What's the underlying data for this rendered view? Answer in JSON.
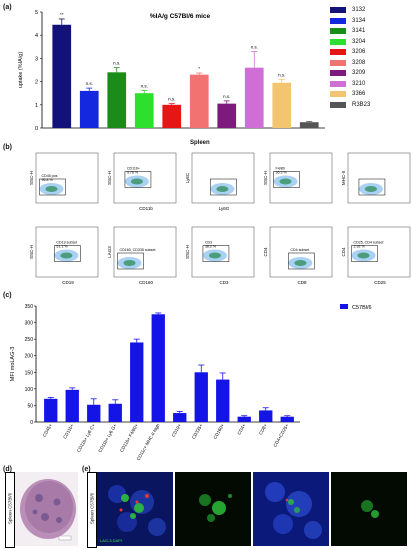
{
  "panel_labels": {
    "a": "(a)",
    "b": "(b)",
    "c": "(c)",
    "d": "(d)",
    "e": "(e)"
  },
  "chart_a": {
    "title": "%IA/g C57Bl/6 mice",
    "ylabel": "uptake (%IA/g)",
    "ylim": [
      0,
      5
    ],
    "yticks": [
      "0",
      "1",
      "2",
      "3",
      "4",
      "5"
    ],
    "bars": [
      {
        "name": "3132",
        "value": 4.45,
        "err": 0.25,
        "color": "#13127a",
        "sig": "**"
      },
      {
        "name": "3134",
        "value": 1.6,
        "err": 0.12,
        "color": "#1428e0",
        "sig": "n.s."
      },
      {
        "name": "3141",
        "value": 2.4,
        "err": 0.2,
        "color": "#1a8c1a",
        "sig": "n.s."
      },
      {
        "name": "3204",
        "value": 1.5,
        "err": 0.12,
        "color": "#2ee02e",
        "sig": "n.s."
      },
      {
        "name": "3206",
        "value": 1.0,
        "err": 0.05,
        "color": "#e61616",
        "sig": "n.s."
      },
      {
        "name": "3208",
        "value": 2.3,
        "err": 0.07,
        "color": "#f27272",
        "sig": "*"
      },
      {
        "name": "3209",
        "value": 1.05,
        "err": 0.12,
        "color": "#7d1a7d",
        "sig": "n.s."
      },
      {
        "name": "3210",
        "value": 2.6,
        "err": 0.7,
        "color": "#cf6fd6",
        "sig": "n.s."
      },
      {
        "name": "3366",
        "value": 1.95,
        "err": 0.15,
        "color": "#f4c570",
        "sig": "n.s."
      },
      {
        "name": "R3B23",
        "value": 0.25,
        "err": 0.03,
        "color": "#555555",
        "sig": ""
      }
    ]
  },
  "flow_b": {
    "title": "Spleen",
    "panels": [
      {
        "y": "SSC-H",
        "x": "",
        "gate": "CD45 pos",
        "pct": "96.8 %"
      },
      {
        "y": "SSC-H",
        "x": "CD11b",
        "gate": "CD11b+",
        "pct": "9.76 %"
      },
      {
        "y": "Ly6C",
        "x": "Ly6G",
        "gate": "",
        "pct": ""
      },
      {
        "y": "SSC-H",
        "x": "",
        "gate": "F4/80",
        "pct": "36.3 %"
      },
      {
        "y": "MHC-II",
        "x": "",
        "gate": "",
        "pct": ""
      },
      {
        "y": "SSC-H",
        "x": "CD19",
        "gate": "CD19 subset",
        "pct": "51.1 %"
      },
      {
        "y": "LAG3",
        "x": "CD160",
        "gate": "CD160, CD335 subset",
        "pct": ""
      },
      {
        "y": "SSC-H",
        "x": "CD3",
        "gate": "CD3",
        "pct": "38.2 %"
      },
      {
        "y": "CD4",
        "x": "CD8",
        "gate": "CD4 subset",
        "pct": ""
      },
      {
        "y": "CD4",
        "x": "CD25",
        "gate": "CD25, CD4 subset",
        "pct": "2.92 %"
      }
    ]
  },
  "chart_data": {
    "type": "bar",
    "ylabel": "MFI moLAG-3",
    "ylim": [
      0,
      350
    ],
    "yticks": [
      "0",
      "50",
      "100",
      "150",
      "200",
      "250",
      "300",
      "350"
    ],
    "legend": "C57Bl/6",
    "color": "#1414e6",
    "categories": [
      "CD45+",
      "CD11b+",
      "CD11b+ Ly6 C+",
      "CD11b+ Ly6 G+",
      "CD11b+ F4/80+",
      "CD11c+ MHC-II high",
      "CD19+",
      "CD335+",
      "CD160+",
      "CD4+",
      "CD8+",
      "CD4+CD25+"
    ],
    "values": [
      70,
      97,
      52,
      55,
      240,
      325,
      27,
      150,
      128,
      16,
      35,
      16
    ],
    "errors": [
      4,
      6,
      18,
      12,
      10,
      4,
      5,
      22,
      20,
      3,
      8,
      3
    ]
  },
  "panel_d": {
    "side_label": "Spleen C57Bl/6"
  },
  "panel_e": {
    "side_label": "Spleen C57Bl/6",
    "stain": "LAG-3 DAPI"
  }
}
